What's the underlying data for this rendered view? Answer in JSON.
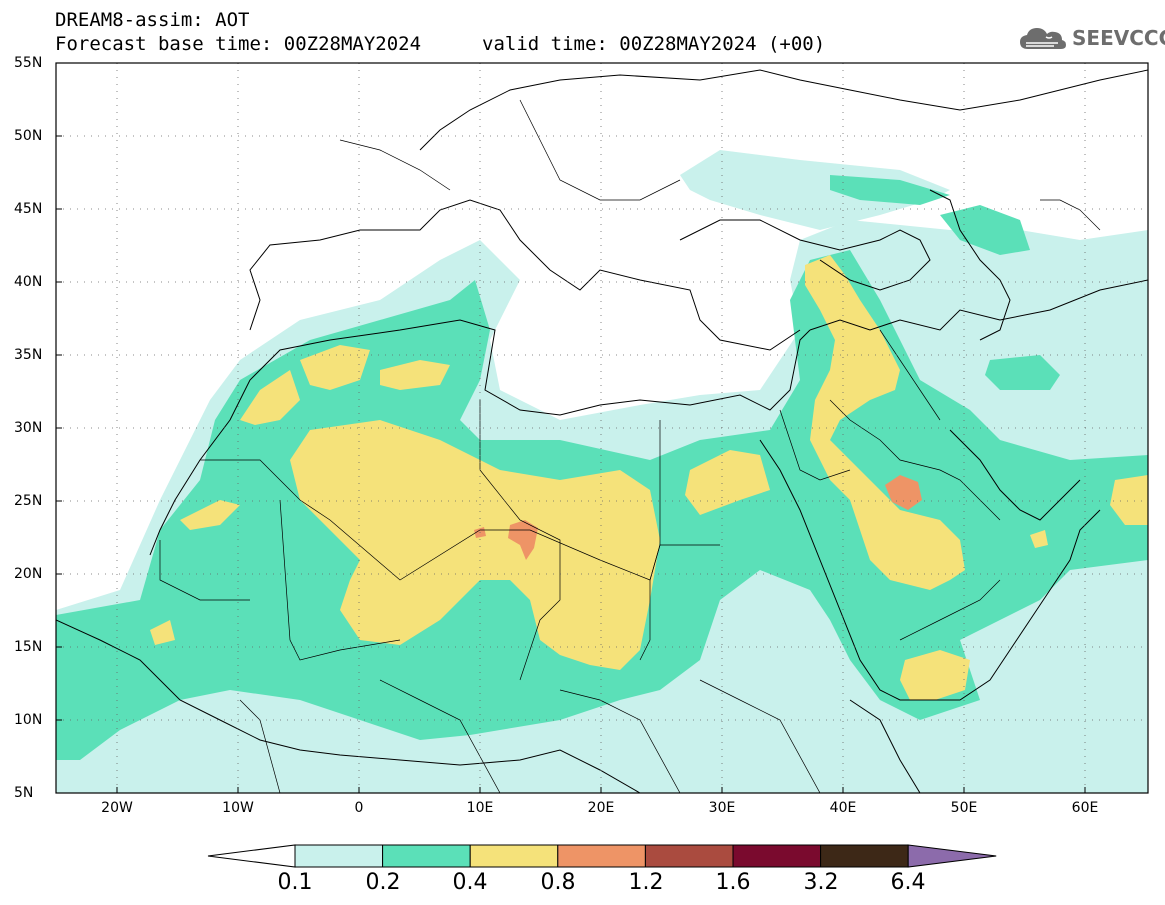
{
  "header": {
    "line1": "DREAM8-assim: AOT",
    "line2_left": "Forecast base time: 00Z28MAY2024",
    "line2_right": "valid time: 00Z28MAY2024 (+00)"
  },
  "logo": {
    "text": "SEEVCCC",
    "icon": "cloud-icon",
    "color": "#6d6d6d"
  },
  "map": {
    "lat_labels": [
      "55N",
      "50N",
      "45N",
      "40N",
      "35N",
      "30N",
      "25N",
      "20N",
      "15N",
      "10N",
      "5N"
    ],
    "lon_labels": [
      "20W",
      "10W",
      "0",
      "10E",
      "20E",
      "30E",
      "40E",
      "50E",
      "60E"
    ],
    "lat_range": [
      5,
      55
    ],
    "lon_range": [
      -25,
      65
    ],
    "grid": "dotted"
  },
  "colorbar": {
    "labels": [
      "0.1",
      "0.2",
      "0.4",
      "0.8",
      "1.2",
      "1.6",
      "3.2",
      "6.4"
    ],
    "colors": [
      "#ffffff",
      "#c9f1ec",
      "#5be0b8",
      "#f5e27a",
      "#ee9466",
      "#aa4b3f",
      "#7a0a2e",
      "#3d2817",
      "#8c6bab"
    ]
  }
}
